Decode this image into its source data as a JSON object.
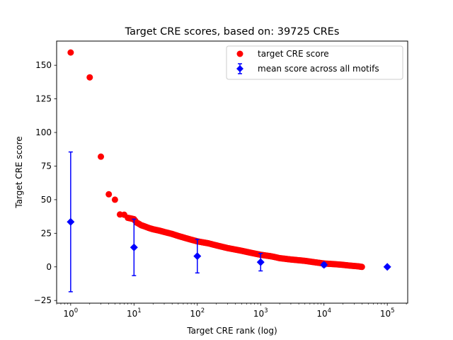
{
  "chart_data": {
    "type": "scatter",
    "title": "Target CRE scores, based on: 39725 CREs",
    "xlabel": "Target CRE rank (log)",
    "ylabel": "Target CRE score",
    "xscale": "log",
    "xlim": [
      0.6,
      210000
    ],
    "ylim": [
      -27,
      168
    ],
    "xticks": [
      {
        "value": 1,
        "base": "10",
        "exp": "0"
      },
      {
        "value": 10,
        "base": "10",
        "exp": "1"
      },
      {
        "value": 100,
        "base": "10",
        "exp": "2"
      },
      {
        "value": 1000,
        "base": "10",
        "exp": "3"
      },
      {
        "value": 10000,
        "base": "10",
        "exp": "4"
      },
      {
        "value": 100000,
        "base": "10",
        "exp": "5"
      }
    ],
    "yticks": [
      -25,
      0,
      25,
      50,
      75,
      100,
      125,
      150
    ],
    "grid": false,
    "legend_position": "top-right",
    "series": [
      {
        "name": "target CRE score",
        "marker": "circle",
        "color": "#ff0000",
        "points": [
          [
            1,
            159.5
          ],
          [
            2,
            141
          ],
          [
            3,
            82
          ],
          [
            4,
            54
          ],
          [
            5,
            50
          ],
          [
            6,
            39
          ],
          [
            7,
            38.8
          ],
          [
            8,
            36.5
          ],
          [
            9,
            36
          ],
          [
            10,
            35.5
          ],
          [
            11,
            33
          ],
          [
            12,
            32
          ],
          [
            13,
            31
          ],
          [
            14,
            30.5
          ],
          [
            15,
            30
          ],
          [
            17,
            29
          ],
          [
            20,
            28
          ],
          [
            25,
            27
          ],
          [
            30,
            26
          ],
          [
            40,
            24.5
          ],
          [
            50,
            23
          ],
          [
            70,
            21
          ],
          [
            100,
            19
          ],
          [
            150,
            17.5
          ],
          [
            200,
            16
          ],
          [
            300,
            14
          ],
          [
            500,
            12
          ],
          [
            700,
            10.5
          ],
          [
            1000,
            9
          ],
          [
            1500,
            7.8
          ],
          [
            2000,
            6.5
          ],
          [
            3000,
            5.5
          ],
          [
            5000,
            4.5
          ],
          [
            7000,
            3.5
          ],
          [
            10000,
            2.5
          ],
          [
            15000,
            2
          ],
          [
            20000,
            1.5
          ],
          [
            25000,
            1
          ],
          [
            30000,
            0.7
          ],
          [
            35000,
            0.4
          ],
          [
            39725,
            0
          ]
        ]
      },
      {
        "name": "mean score across all motifs",
        "marker": "diamond",
        "color": "#0000ff",
        "points": [
          {
            "x": 1,
            "y": 33.5,
            "ylow": -18.5,
            "yhigh": 85.5
          },
          {
            "x": 10,
            "y": 14.5,
            "ylow": -6.5,
            "yhigh": 35.5
          },
          {
            "x": 100,
            "y": 8,
            "ylow": -4.5,
            "yhigh": 20.5
          },
          {
            "x": 1000,
            "y": 3.5,
            "ylow": -3,
            "yhigh": 10
          },
          {
            "x": 10000,
            "y": 1.5,
            "ylow": 0,
            "yhigh": 3
          },
          {
            "x": 100000,
            "y": 0,
            "ylow": 0,
            "yhigh": 0
          }
        ]
      }
    ]
  }
}
